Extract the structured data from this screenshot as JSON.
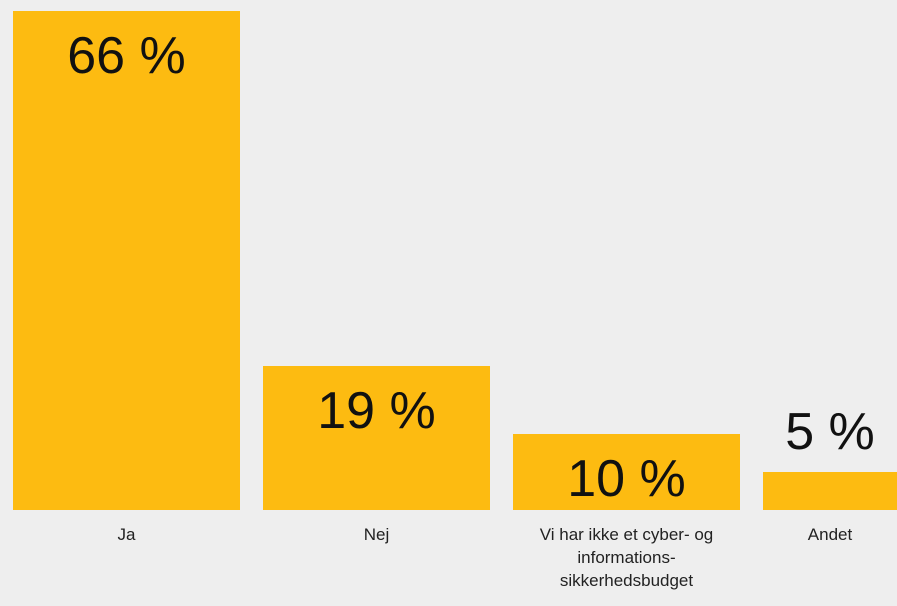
{
  "chart_data": {
    "type": "bar",
    "categories": [
      "Ja",
      "Nej",
      "Vi har ikke et cyber- og informations- sikkerhedsbudget",
      "Andet"
    ],
    "values": [
      66,
      19,
      10,
      5
    ],
    "value_labels": [
      "66 %",
      "19 %",
      "10 %",
      "5 %"
    ],
    "color": "#fdbb11"
  }
}
